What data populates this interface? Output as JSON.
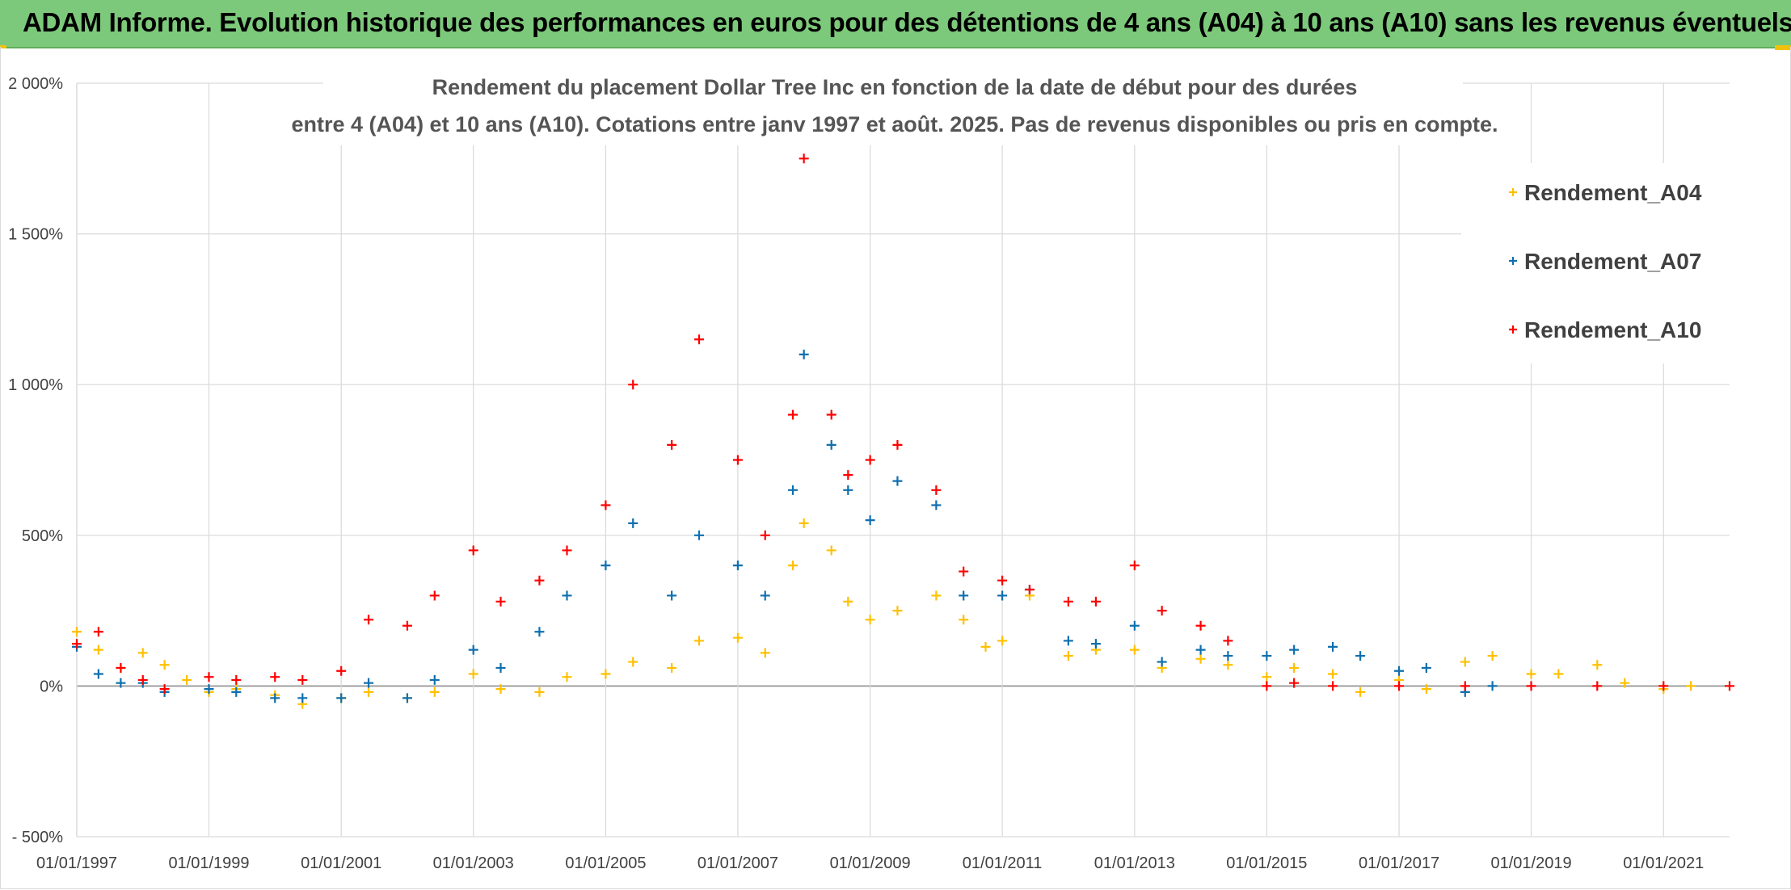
{
  "banner": {
    "title": "ADAM Informe. Evolution historique des performances en euros pour des détentions de 4 ans (A04) à 10 ans (A10) sans les revenus éventuels"
  },
  "chart_data": {
    "type": "scatter",
    "title_line1": "Rendement du placement Dollar Tree Inc en fonction de la date de début pour des durées",
    "title_line2": "entre 4 (A04) et 10 ans (A10). Cotations entre janv 1997 et août. 2025. Pas de revenus disponibles ou pris en compte.",
    "xlabel": "",
    "ylabel": "",
    "xlim": [
      "1997-01-01",
      "2022-01-01"
    ],
    "ylim": [
      -500,
      2000
    ],
    "x_ticks": [
      "01/01/1997",
      "01/01/1999",
      "01/01/2001",
      "01/01/2003",
      "01/01/2005",
      "01/01/2007",
      "01/01/2009",
      "01/01/2011",
      "01/01/2013",
      "01/01/2015",
      "01/01/2017",
      "01/01/2019",
      "01/01/2021"
    ],
    "y_ticks": [
      "- 500%",
      "0%",
      "500%",
      "1 000%",
      "1 500%",
      "2 000%"
    ],
    "y_tick_values": [
      -500,
      0,
      500,
      1000,
      1500,
      2000
    ],
    "grid": true,
    "legend_position": "right",
    "marker": "+",
    "series": [
      {
        "name": "Rendement_A04",
        "color": "#ffc000",
        "points": [
          [
            "1997-01-01",
            180
          ],
          [
            "1997-05-01",
            120
          ],
          [
            "1997-09-01",
            60
          ],
          [
            "1998-01-01",
            110
          ],
          [
            "1998-05-01",
            70
          ],
          [
            "1998-09-01",
            20
          ],
          [
            "1999-01-01",
            -20
          ],
          [
            "1999-06-01",
            -10
          ],
          [
            "2000-01-01",
            -30
          ],
          [
            "2000-06-01",
            -60
          ],
          [
            "2001-01-01",
            -40
          ],
          [
            "2001-06-01",
            -20
          ],
          [
            "2002-01-01",
            -40
          ],
          [
            "2002-06-01",
            -20
          ],
          [
            "2003-01-01",
            40
          ],
          [
            "2003-06-01",
            -10
          ],
          [
            "2004-01-01",
            -20
          ],
          [
            "2004-06-01",
            30
          ],
          [
            "2005-01-01",
            40
          ],
          [
            "2005-06-01",
            80
          ],
          [
            "2006-01-01",
            60
          ],
          [
            "2006-06-01",
            150
          ],
          [
            "2007-01-01",
            160
          ],
          [
            "2007-06-01",
            110
          ],
          [
            "2007-11-01",
            400
          ],
          [
            "2008-01-01",
            540
          ],
          [
            "2008-06-01",
            450
          ],
          [
            "2008-09-01",
            280
          ],
          [
            "2009-01-01",
            220
          ],
          [
            "2009-06-01",
            250
          ],
          [
            "2010-01-01",
            300
          ],
          [
            "2010-06-01",
            220
          ],
          [
            "2010-10-01",
            130
          ],
          [
            "2011-01-01",
            150
          ],
          [
            "2011-06-01",
            300
          ],
          [
            "2012-01-01",
            100
          ],
          [
            "2012-06-01",
            120
          ],
          [
            "2013-01-01",
            120
          ],
          [
            "2013-06-01",
            60
          ],
          [
            "2014-01-01",
            90
          ],
          [
            "2014-06-01",
            70
          ],
          [
            "2015-01-01",
            30
          ],
          [
            "2015-06-01",
            60
          ],
          [
            "2016-01-01",
            40
          ],
          [
            "2016-06-01",
            -20
          ],
          [
            "2017-01-01",
            20
          ],
          [
            "2017-06-01",
            -10
          ],
          [
            "2018-01-01",
            80
          ],
          [
            "2018-06-01",
            100
          ],
          [
            "2019-01-01",
            40
          ],
          [
            "2019-06-01",
            40
          ],
          [
            "2020-01-01",
            70
          ],
          [
            "2020-06-01",
            10
          ],
          [
            "2021-01-01",
            -10
          ],
          [
            "2021-06-01",
            0
          ]
        ]
      },
      {
        "name": "Rendement_A07",
        "color": "#0f6faf",
        "points": [
          [
            "1997-01-01",
            130
          ],
          [
            "1997-05-01",
            40
          ],
          [
            "1997-09-01",
            10
          ],
          [
            "1998-01-01",
            10
          ],
          [
            "1998-05-01",
            -20
          ],
          [
            "1999-01-01",
            -10
          ],
          [
            "1999-06-01",
            -20
          ],
          [
            "2000-01-01",
            -40
          ],
          [
            "2000-06-01",
            -40
          ],
          [
            "2001-01-01",
            -40
          ],
          [
            "2001-06-01",
            10
          ],
          [
            "2002-01-01",
            -40
          ],
          [
            "2002-06-01",
            20
          ],
          [
            "2003-01-01",
            120
          ],
          [
            "2003-06-01",
            60
          ],
          [
            "2004-01-01",
            180
          ],
          [
            "2004-06-01",
            300
          ],
          [
            "2005-01-01",
            400
          ],
          [
            "2005-06-01",
            540
          ],
          [
            "2006-01-01",
            300
          ],
          [
            "2006-06-01",
            500
          ],
          [
            "2007-01-01",
            400
          ],
          [
            "2007-06-01",
            300
          ],
          [
            "2007-11-01",
            650
          ],
          [
            "2008-01-01",
            1100
          ],
          [
            "2008-06-01",
            800
          ],
          [
            "2008-09-01",
            650
          ],
          [
            "2009-01-01",
            550
          ],
          [
            "2009-06-01",
            680
          ],
          [
            "2010-01-01",
            600
          ],
          [
            "2010-06-01",
            300
          ],
          [
            "2011-01-01",
            300
          ],
          [
            "2011-06-01",
            320
          ],
          [
            "2012-01-01",
            150
          ],
          [
            "2012-06-01",
            140
          ],
          [
            "2013-01-01",
            200
          ],
          [
            "2013-06-01",
            80
          ],
          [
            "2014-01-01",
            120
          ],
          [
            "2014-06-01",
            100
          ],
          [
            "2015-01-01",
            100
          ],
          [
            "2015-06-01",
            120
          ],
          [
            "2016-01-01",
            130
          ],
          [
            "2016-06-01",
            100
          ],
          [
            "2017-01-01",
            50
          ],
          [
            "2017-06-01",
            60
          ],
          [
            "2018-01-01",
            -20
          ],
          [
            "2018-06-01",
            0
          ]
        ]
      },
      {
        "name": "Rendement_A10",
        "color": "#ff0000",
        "points": [
          [
            "1997-01-01",
            140
          ],
          [
            "1997-05-01",
            180
          ],
          [
            "1997-09-01",
            60
          ],
          [
            "1998-01-01",
            20
          ],
          [
            "1998-05-01",
            -10
          ],
          [
            "1999-01-01",
            30
          ],
          [
            "1999-06-01",
            20
          ],
          [
            "2000-01-01",
            30
          ],
          [
            "2000-06-01",
            20
          ],
          [
            "2001-01-01",
            50
          ],
          [
            "2001-06-01",
            220
          ],
          [
            "2002-01-01",
            200
          ],
          [
            "2002-06-01",
            300
          ],
          [
            "2003-01-01",
            450
          ],
          [
            "2003-06-01",
            280
          ],
          [
            "2004-01-01",
            350
          ],
          [
            "2004-06-01",
            450
          ],
          [
            "2005-01-01",
            600
          ],
          [
            "2005-06-01",
            1000
          ],
          [
            "2006-01-01",
            800
          ],
          [
            "2006-06-01",
            1150
          ],
          [
            "2007-01-01",
            750
          ],
          [
            "2007-06-01",
            500
          ],
          [
            "2007-11-01",
            900
          ],
          [
            "2008-01-01",
            1750
          ],
          [
            "2008-06-01",
            900
          ],
          [
            "2008-09-01",
            700
          ],
          [
            "2009-01-01",
            750
          ],
          [
            "2009-06-01",
            800
          ],
          [
            "2010-01-01",
            650
          ],
          [
            "2010-06-01",
            380
          ],
          [
            "2011-01-01",
            350
          ],
          [
            "2011-06-01",
            320
          ],
          [
            "2012-01-01",
            280
          ],
          [
            "2012-06-01",
            280
          ],
          [
            "2013-01-01",
            400
          ],
          [
            "2013-06-01",
            250
          ],
          [
            "2014-01-01",
            200
          ],
          [
            "2014-06-01",
            150
          ],
          [
            "2015-01-01",
            0
          ],
          [
            "2015-06-01",
            10
          ],
          [
            "2016-01-01",
            0
          ],
          [
            "2017-01-01",
            0
          ],
          [
            "2018-01-01",
            0
          ],
          [
            "2019-01-01",
            0
          ],
          [
            "2020-01-01",
            0
          ],
          [
            "2021-01-01",
            0
          ],
          [
            "2022-01-01",
            0
          ]
        ]
      }
    ]
  }
}
